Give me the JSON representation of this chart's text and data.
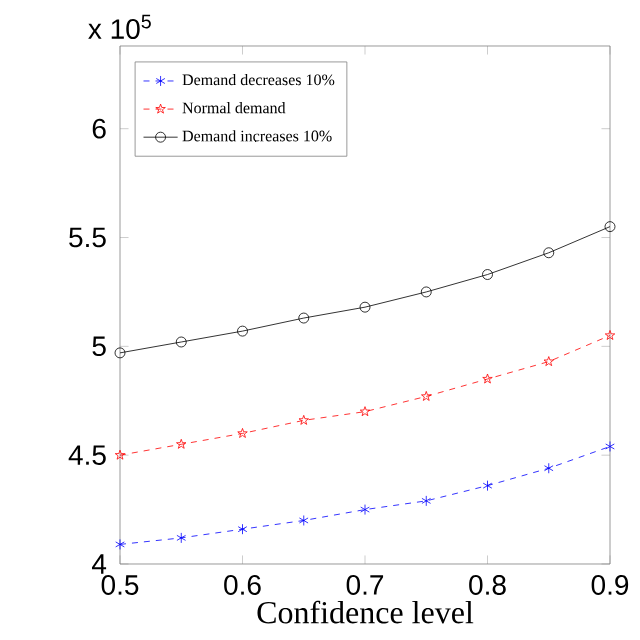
{
  "chart_data": {
    "type": "line",
    "xlabel": "Confidence level",
    "annotations": [
      "x 10$^{5}$"
    ],
    "x": [
      0.5,
      0.55,
      0.6,
      0.65,
      0.7,
      0.75,
      0.8,
      0.85,
      0.9
    ],
    "xlim": [
      0.5,
      0.9
    ],
    "xticks": [
      0.5,
      0.6,
      0.7,
      0.8,
      0.9
    ],
    "ylim": [
      4,
      6.38
    ],
    "yticks": [
      4,
      4.5,
      5,
      5.5,
      6
    ],
    "grid": false,
    "legend": "top left",
    "series": [
      {
        "name": "Demand decreases 10%",
        "color": "#0000ff",
        "marker": "cross",
        "line_style": "dashed",
        "values": [
          4.09,
          4.12,
          4.16,
          4.2,
          4.25,
          4.29,
          4.36,
          4.44,
          4.54
        ]
      },
      {
        "name": "Normal demand",
        "color": "#ff0000",
        "marker": "star",
        "line_style": "dashed",
        "values": [
          4.5,
          4.55,
          4.6,
          4.66,
          4.7,
          4.77,
          4.85,
          4.93,
          5.05
        ]
      },
      {
        "name": "Demand increases 10%",
        "color": "#000000",
        "marker": "circle",
        "line_style": "solid",
        "values": [
          4.97,
          5.02,
          5.07,
          5.13,
          5.18,
          5.25,
          5.33,
          5.43,
          5.55
        ]
      }
    ]
  }
}
